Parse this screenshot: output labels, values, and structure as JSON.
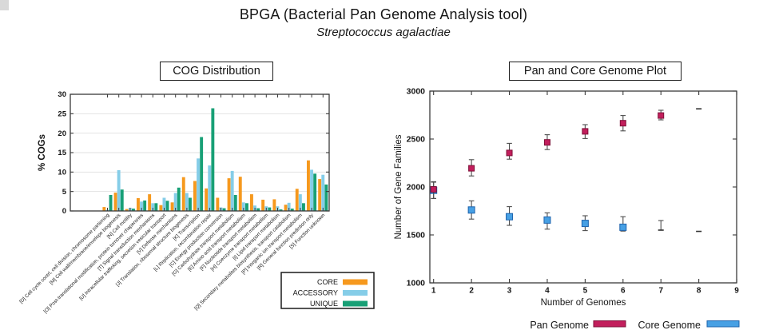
{
  "page": {
    "title": "BPGA (Bacterial Pan Genome Analysis tool)",
    "subtitle": "Streptococcus agalactiae"
  },
  "chart_data": [
    {
      "type": "bar",
      "title": "COG Distribution",
      "xlabel": "",
      "ylabel": "% COGs",
      "ylim": [
        0,
        30
      ],
      "yticks": [
        0,
        5,
        10,
        15,
        20,
        25,
        30
      ],
      "grid": true,
      "legend_position": "bottom-right-outside",
      "categories": [
        "[D] Cell cycle contrl, cell division, chromosome partioning",
        "[M] Cell wall/membrane/envelope biogenesis",
        "[N] Cell motility",
        "[O] Post-translational modification, protein turnover chaperones",
        "[T] Signal transduction mechanisms",
        "[U] Intracellular trafficking, secretion vesicular transport",
        "[V] Defense mechanisms",
        "[J] Translation, ribosomal structure biogenesis",
        "[K] Transcription",
        "[L] Replication, recombination repair",
        "[C] Energy production conversion",
        "[G] Carbohydrate transport metabolism",
        "[E] Amino acid transport metabolism",
        "[F] Nucleotide transport metabolism",
        "[H] Coenzyme transport metabolism",
        "[I] Lipid transport metabolism",
        "[Q] Secondary metabolites biosynthesis, transport catabolism",
        "[P] Inorganic ion transport metabolism",
        "[R] General function prediction only",
        "[S] Function unknown"
      ],
      "series": [
        {
          "name": "CORE",
          "color": "#F6991E",
          "values": [
            1.0,
            4.7,
            0.5,
            3.3,
            4.3,
            1.5,
            2.2,
            8.7,
            7.7,
            5.8,
            3.4,
            8.4,
            8.8,
            4.3,
            2.9,
            3.0,
            1.6,
            5.7,
            13.0,
            8.2
          ]
        },
        {
          "name": "ACCESSORY",
          "color": "#85CDE8",
          "values": [
            0.3,
            10.5,
            0.8,
            2.4,
            2.0,
            3.4,
            4.6,
            4.6,
            13.5,
            11.7,
            0.9,
            10.3,
            2.2,
            1.4,
            1.2,
            1.2,
            2.1,
            4.3,
            10.6,
            9.3
          ]
        },
        {
          "name": "UNIQUE",
          "color": "#18A076",
          "values": [
            4.1,
            5.5,
            0.6,
            2.7,
            2.0,
            2.6,
            6.0,
            3.4,
            19.0,
            26.4,
            0.7,
            4.1,
            2.0,
            0.7,
            0.9,
            0.4,
            0.6,
            2.0,
            9.6,
            6.8
          ]
        }
      ]
    },
    {
      "type": "scatter",
      "title": "Pan and Core Genome Plot",
      "xlabel": "Number of Genomes",
      "ylabel": "Number of Gene Families",
      "xlim": [
        1,
        9
      ],
      "xticks": [
        1,
        2,
        3,
        4,
        5,
        6,
        7,
        8,
        9
      ],
      "ylim": [
        1000,
        3000
      ],
      "yticks": [
        1000,
        1500,
        2000,
        2500,
        3000
      ],
      "grid": false,
      "legend_position": "bottom-outside",
      "x": [
        1,
        2,
        3,
        4,
        5,
        6,
        7,
        8
      ],
      "series": [
        {
          "name": "Pan Genome",
          "color": "#C21E5C",
          "edge": "#7E1038",
          "marker_size": 7,
          "y": [
            1975,
            2195,
            2355,
            2465,
            2580,
            2665,
            2745,
            2815
          ],
          "lo": [
            1880,
            2115,
            2290,
            2390,
            2505,
            2585,
            2700,
            2815
          ],
          "hi": [
            2055,
            2285,
            2455,
            2545,
            2650,
            2745,
            2800,
            2815
          ],
          "markers": [
            "square",
            "square",
            "square",
            "square",
            "square",
            "square",
            "square",
            "dash"
          ]
        },
        {
          "name": "Core Genome",
          "color": "#47A0E4",
          "edge": "#1E63AD",
          "marker_size": 8,
          "y": [
            1965,
            1760,
            1690,
            1655,
            1620,
            1580,
            1550,
            1537
          ],
          "lo": [
            1880,
            1665,
            1600,
            1560,
            1545,
            1540,
            1550,
            1537
          ],
          "hi": [
            2050,
            1855,
            1795,
            1730,
            1700,
            1690,
            1650,
            1537
          ],
          "markers": [
            "square",
            "square",
            "square",
            "square",
            "square",
            "square",
            "dash",
            "dash"
          ]
        }
      ]
    }
  ]
}
